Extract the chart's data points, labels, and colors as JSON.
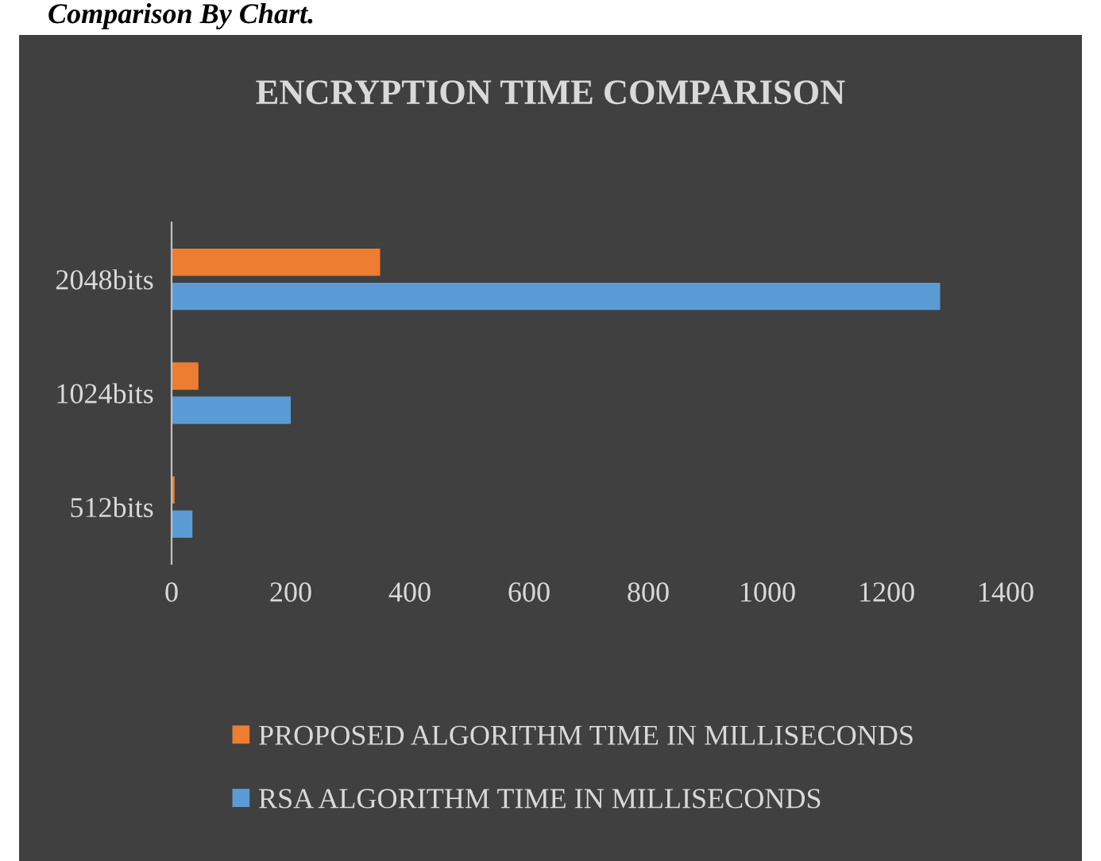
{
  "chart_data": {
    "type": "bar",
    "orientation": "horizontal",
    "title": "ENCRYPTION TIME COMPARISON",
    "annotations": [
      "Comparison By Chart."
    ],
    "categories": [
      "2048bits",
      "1024bits",
      "512bits"
    ],
    "series": [
      {
        "name": "PROPOSED ALGORITHM TIME IN MILLISECONDS",
        "color": "#ed7d31",
        "values": [
          350,
          45,
          5
        ]
      },
      {
        "name": "RSA ALGORITHM TIME IN MILLISECONDS",
        "color": "#5b9bd5",
        "values": [
          1290,
          200,
          35
        ]
      }
    ],
    "xlim": [
      0,
      1400
    ],
    "xticks": [
      0,
      200,
      400,
      600,
      800,
      1000,
      1200,
      1400
    ],
    "grid": false,
    "legend": "bottom"
  }
}
